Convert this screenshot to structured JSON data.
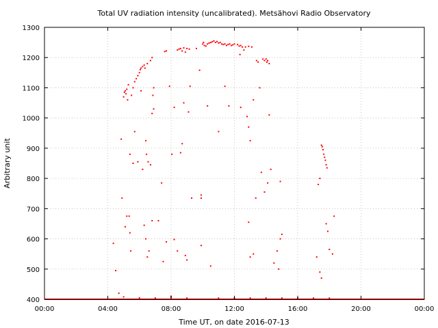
{
  "chart_data": {
    "type": "scatter",
    "title": "Total UV radiation intensity (uncalibrated). Metsähovi Radio Observatory",
    "xlabel": "Time UT, on date 2016-07-13",
    "ylabel": "Arbitrary unit",
    "xlim": [
      0,
      24
    ],
    "ylim": [
      400,
      1300
    ],
    "xticks": [
      0,
      4,
      8,
      12,
      16,
      20,
      24
    ],
    "xtick_labels": [
      "00:00",
      "04:00",
      "08:00",
      "12:00",
      "16:00",
      "20:00",
      "00:00"
    ],
    "yticks": [
      400,
      500,
      600,
      700,
      800,
      900,
      1000,
      1100,
      1200,
      1300
    ],
    "ytick_labels": [
      "400",
      "500",
      "600",
      "700",
      "800",
      "900",
      "1000",
      "1100",
      "1200",
      "1300"
    ],
    "grid": true,
    "marker_color": "#ff0000",
    "series": [
      {
        "name": "",
        "points": [
          [
            4.35,
            585
          ],
          [
            4.5,
            495
          ],
          [
            4.7,
            420
          ],
          [
            4.85,
            930
          ],
          [
            4.9,
            735
          ],
          [
            5.0,
            1070
          ],
          [
            5.05,
            1085
          ],
          [
            5.1,
            1090
          ],
          [
            5.15,
            1080
          ],
          [
            5.2,
            1095
          ],
          [
            5.25,
            1060
          ],
          [
            5.3,
            1110
          ],
          [
            5.1,
            640
          ],
          [
            5.2,
            675
          ],
          [
            5.35,
            675
          ],
          [
            5.4,
            620
          ],
          [
            5.45,
            560
          ],
          [
            5.5,
            1075
          ],
          [
            5.6,
            1100
          ],
          [
            5.7,
            1120
          ],
          [
            5.8,
            1130
          ],
          [
            5.9,
            1140
          ],
          [
            6.0,
            1150
          ],
          [
            6.05,
            1160
          ],
          [
            6.1,
            1165
          ],
          [
            6.2,
            1170
          ],
          [
            6.3,
            1175
          ],
          [
            6.35,
            1165
          ],
          [
            6.5,
            1180
          ],
          [
            6.7,
            1190
          ],
          [
            6.8,
            1200
          ],
          [
            5.4,
            880
          ],
          [
            5.6,
            850
          ],
          [
            5.7,
            955
          ],
          [
            5.9,
            855
          ],
          [
            6.1,
            1090
          ],
          [
            6.2,
            830
          ],
          [
            6.4,
            925
          ],
          [
            6.45,
            880
          ],
          [
            6.55,
            855
          ],
          [
            6.7,
            845
          ],
          [
            6.8,
            1015
          ],
          [
            6.85,
            1075
          ],
          [
            6.9,
            1030
          ],
          [
            6.3,
            645
          ],
          [
            6.4,
            600
          ],
          [
            6.5,
            540
          ],
          [
            6.6,
            560
          ],
          [
            6.8,
            660
          ],
          [
            6.9,
            1100
          ],
          [
            7.2,
            660
          ],
          [
            7.4,
            785
          ],
          [
            7.6,
            1220
          ],
          [
            7.7,
            1222
          ],
          [
            7.9,
            1105
          ],
          [
            8.05,
            880
          ],
          [
            8.2,
            1035
          ],
          [
            8.4,
            1225
          ],
          [
            8.5,
            1228
          ],
          [
            8.6,
            1230
          ],
          [
            8.7,
            1222
          ],
          [
            8.8,
            1232
          ],
          [
            8.9,
            1218
          ],
          [
            9.0,
            1230
          ],
          [
            9.15,
            1228
          ],
          [
            8.6,
            885
          ],
          [
            8.7,
            915
          ],
          [
            8.8,
            1050
          ],
          [
            9.1,
            1020
          ],
          [
            9.2,
            1105
          ],
          [
            7.5,
            525
          ],
          [
            7.7,
            590
          ],
          [
            8.0,
            410
          ],
          [
            8.2,
            598
          ],
          [
            8.4,
            560
          ],
          [
            8.9,
            545
          ],
          [
            9.0,
            530
          ],
          [
            9.3,
            735
          ],
          [
            9.6,
            1230
          ],
          [
            9.8,
            1158
          ],
          [
            9.9,
            745
          ],
          [
            9.9,
            735
          ],
          [
            10.0,
            1245
          ],
          [
            10.05,
            1250
          ],
          [
            10.1,
            1240
          ],
          [
            10.2,
            1238
          ],
          [
            10.3,
            1245
          ],
          [
            10.4,
            1248
          ],
          [
            10.5,
            1250
          ],
          [
            10.6,
            1252
          ],
          [
            10.7,
            1255
          ],
          [
            10.8,
            1250
          ],
          [
            10.9,
            1253
          ],
          [
            11.0,
            1248
          ],
          [
            11.1,
            1250
          ],
          [
            11.2,
            1245
          ],
          [
            11.3,
            1243
          ],
          [
            11.4,
            1245
          ],
          [
            11.5,
            1240
          ],
          [
            11.6,
            1243
          ],
          [
            11.7,
            1245
          ],
          [
            11.8,
            1240
          ],
          [
            11.9,
            1242
          ],
          [
            12.0,
            1245
          ],
          [
            12.2,
            1243
          ],
          [
            12.3,
            1238
          ],
          [
            12.4,
            1240
          ],
          [
            12.5,
            1235
          ],
          [
            12.7,
            1235
          ],
          [
            12.9,
            1237
          ],
          [
            13.1,
            1235
          ],
          [
            12.35,
            1210
          ],
          [
            12.6,
            1225
          ],
          [
            11.0,
            955
          ],
          [
            11.4,
            1105
          ],
          [
            11.65,
            1040
          ],
          [
            12.4,
            1035
          ],
          [
            12.8,
            1005
          ],
          [
            12.9,
            970
          ],
          [
            13.0,
            925
          ],
          [
            13.2,
            1060
          ],
          [
            13.35,
            735
          ],
          [
            10.3,
            1040
          ],
          [
            10.5,
            510
          ],
          [
            9.9,
            578
          ],
          [
            12.9,
            655
          ],
          [
            13.0,
            540
          ],
          [
            13.2,
            550
          ],
          [
            13.4,
            1190
          ],
          [
            13.5,
            1185
          ],
          [
            13.6,
            1100
          ],
          [
            13.8,
            1195
          ],
          [
            13.9,
            1190
          ],
          [
            14.0,
            1195
          ],
          [
            14.05,
            1185
          ],
          [
            14.1,
            1190
          ],
          [
            14.2,
            1180
          ],
          [
            13.7,
            820
          ],
          [
            13.9,
            755
          ],
          [
            14.2,
            1010
          ],
          [
            14.3,
            830
          ],
          [
            14.1,
            785
          ],
          [
            14.9,
            790
          ],
          [
            14.5,
            520
          ],
          [
            14.7,
            560
          ],
          [
            14.8,
            500
          ],
          [
            14.9,
            600
          ],
          [
            15.0,
            615
          ],
          [
            17.5,
            910
          ],
          [
            17.55,
            905
          ],
          [
            17.6,
            895
          ],
          [
            17.65,
            880
          ],
          [
            17.7,
            870
          ],
          [
            17.75,
            860
          ],
          [
            17.8,
            845
          ],
          [
            17.85,
            835
          ],
          [
            17.4,
            800
          ],
          [
            17.3,
            780
          ],
          [
            17.2,
            540
          ],
          [
            17.4,
            490
          ],
          [
            17.5,
            470
          ],
          [
            17.8,
            650
          ],
          [
            17.9,
            625
          ],
          [
            18.0,
            565
          ],
          [
            18.2,
            550
          ],
          [
            18.3,
            675
          ],
          [
            5.0,
            408
          ],
          [
            6.0,
            405
          ],
          [
            7.0,
            404
          ],
          [
            8.0,
            406
          ],
          [
            9.0,
            404
          ],
          [
            11.0,
            404
          ],
          [
            12.0,
            404
          ],
          [
            13.0,
            404
          ],
          [
            14.0,
            404
          ],
          [
            15.0,
            404
          ],
          [
            16.0,
            404
          ],
          [
            17.0,
            404
          ],
          [
            18.0,
            404
          ]
        ]
      }
    ]
  }
}
